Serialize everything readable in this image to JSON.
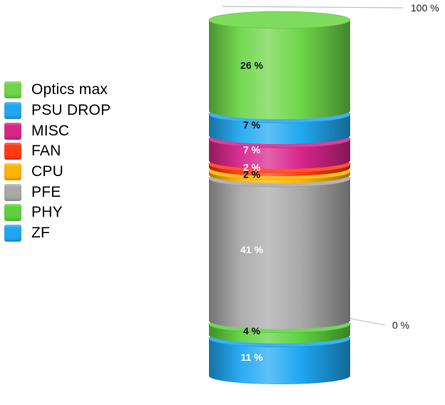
{
  "chart_data": {
    "type": "bar",
    "style": "3d-stacked-cylinder",
    "series": [
      {
        "name": "ZF",
        "value": 11,
        "label": "11 %",
        "color": "#1ea7f2"
      },
      {
        "name": "PHY",
        "value": 4,
        "label": "4 %",
        "color": "#5ed13f"
      },
      {
        "name": "PFE",
        "value": 41,
        "label": "41 %",
        "color": "#a9a9a9"
      },
      {
        "name": "CPU",
        "value": 2,
        "label": "2 %",
        "color": "#ffb400"
      },
      {
        "name": "FAN",
        "value": 2,
        "label": "2 %",
        "color": "#ff3b12"
      },
      {
        "name": "MISC",
        "value": 7,
        "label": "7 %",
        "color": "#d7258a"
      },
      {
        "name": "PSU DROP",
        "value": 7,
        "label": "7 %",
        "color": "#21a8f0"
      },
      {
        "name": "Optics max",
        "value": 26,
        "label": "26 %",
        "color": "#6ed648"
      }
    ],
    "ylim": [
      0,
      100
    ],
    "yticks": [
      "0 %",
      "100 %"
    ],
    "legend_position": "left"
  }
}
